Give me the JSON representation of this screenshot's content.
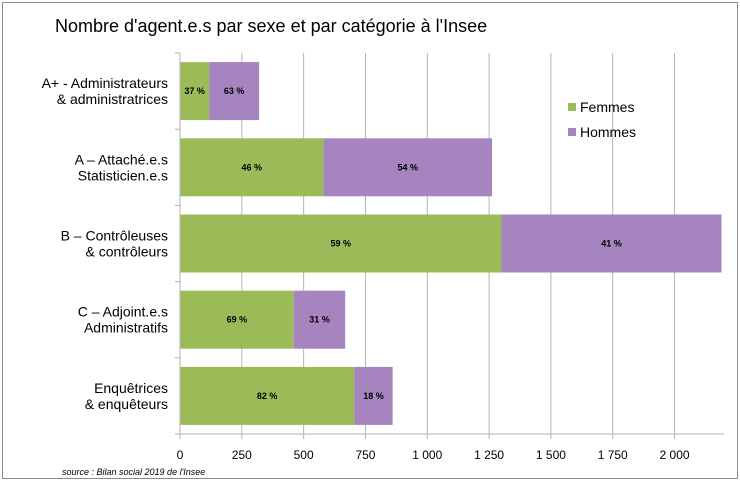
{
  "chart_data": {
    "type": "bar",
    "orientation": "horizontal",
    "stacked": true,
    "title": "Nombre d'agent.e.s par sexe et par catégorie à l'Insee",
    "source": "source : Bilan social 2019 de l'Insee",
    "categories": [
      [
        "A+ - Administrateurs",
        "& administratrices"
      ],
      [
        "A – Attaché.e.s",
        "Statisticien.e.s"
      ],
      [
        "B – Contrôleuses",
        "& contrôleurs"
      ],
      [
        "C – Adjoint.e.s",
        "Administratifs"
      ],
      [
        "Enquêtrices",
        "& enquêteurs"
      ]
    ],
    "series": [
      {
        "name": "Femmes",
        "color": "#9bbb59",
        "values": [
          118,
          580,
          1300,
          460,
          705
        ],
        "labels": [
          "37 %",
          "46 %",
          "59 %",
          "69 %",
          "82 %"
        ]
      },
      {
        "name": "Hommes",
        "color": "#a584c0",
        "values": [
          202,
          682,
          890,
          208,
          155
        ],
        "labels": [
          "63 %",
          "54 %",
          "41 %",
          "31 %",
          "18 %"
        ]
      }
    ],
    "xlim": [
      0,
      2200
    ],
    "xticks": [
      0,
      250,
      500,
      750,
      1000,
      1250,
      1500,
      1750,
      2000
    ],
    "xtick_labels": [
      "0",
      "250",
      "500",
      "750",
      "1 000",
      "1 250",
      "1 500",
      "1 750",
      "2 000"
    ],
    "grid": true,
    "legend_position": "top-right"
  }
}
